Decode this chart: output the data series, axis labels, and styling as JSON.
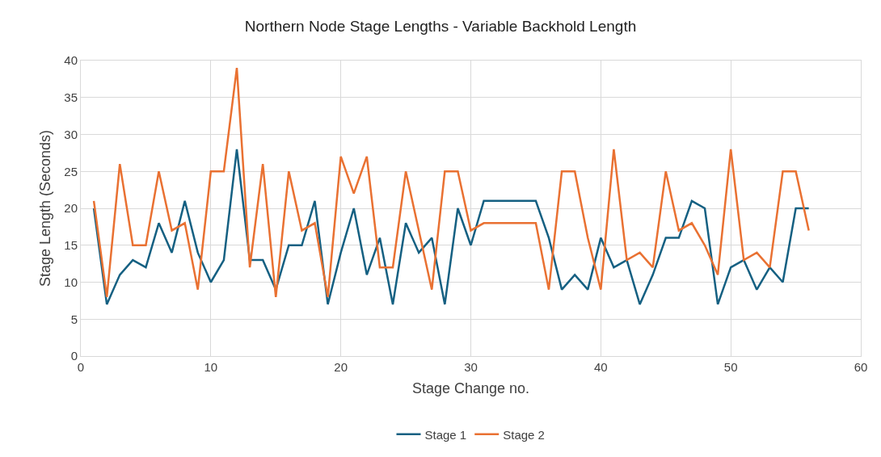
{
  "chart_data": {
    "type": "line",
    "title": "Northern Node Stage Lengths - Variable Backhold Length",
    "xlabel": "Stage Change no.",
    "ylabel": "Stage Length (Seconds)",
    "x": [
      1,
      2,
      3,
      4,
      5,
      6,
      7,
      8,
      9,
      10,
      11,
      12,
      13,
      14,
      15,
      16,
      17,
      18,
      19,
      20,
      21,
      22,
      23,
      24,
      25,
      26,
      27,
      28,
      29,
      30,
      31,
      32,
      33,
      34,
      35,
      36,
      37,
      38,
      39,
      40,
      41,
      42,
      43,
      44,
      45,
      46,
      47,
      48,
      49,
      50,
      51,
      52,
      53,
      54,
      55,
      56
    ],
    "series": [
      {
        "name": "Stage 1",
        "color": "#156082",
        "values": [
          20,
          7,
          11,
          13,
          12,
          18,
          14,
          21,
          14,
          10,
          13,
          28,
          13,
          13,
          9,
          15,
          15,
          21,
          7,
          14,
          20,
          11,
          16,
          7,
          18,
          14,
          16,
          7,
          20,
          15,
          21,
          21,
          21,
          21,
          21,
          16,
          9,
          11,
          9,
          16,
          12,
          13,
          7,
          11,
          16,
          16,
          21,
          20,
          7,
          12,
          13,
          9,
          12,
          10,
          20,
          20
        ]
      },
      {
        "name": "Stage 2",
        "color": "#e97132",
        "values": [
          21,
          8,
          26,
          15,
          15,
          25,
          17,
          18,
          9,
          25,
          25,
          39,
          12,
          26,
          8,
          25,
          17,
          18,
          8,
          27,
          22,
          27,
          12,
          12,
          25,
          17,
          9,
          25,
          25,
          17,
          18,
          18,
          18,
          18,
          18,
          9,
          25,
          25,
          16,
          9,
          28,
          13,
          14,
          12,
          25,
          17,
          18,
          15,
          11,
          28,
          13,
          14,
          12,
          25,
          25,
          17
        ]
      }
    ],
    "xlim": [
      0,
      60
    ],
    "xticks": [
      0,
      10,
      20,
      30,
      40,
      50,
      60
    ],
    "ylim": [
      0,
      40
    ],
    "yticks": [
      0,
      5,
      10,
      15,
      20,
      25,
      30,
      35,
      40
    ],
    "grid": true,
    "legend": "bottom",
    "marker": "none",
    "line_style": "solid"
  }
}
